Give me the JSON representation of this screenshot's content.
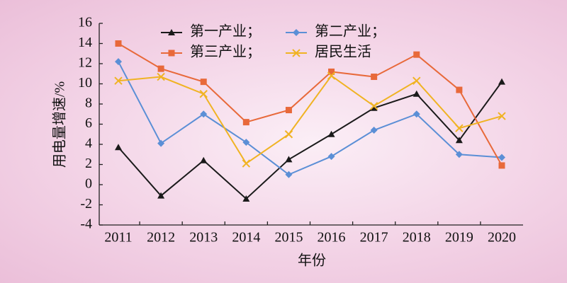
{
  "chart_data": {
    "type": "line",
    "x_label": "年份",
    "y_label": "用电量增速/%",
    "categories": [
      "2011",
      "2012",
      "2013",
      "2014",
      "2015",
      "2016",
      "2017",
      "2018",
      "2019",
      "2020"
    ],
    "series": [
      {
        "name": "第一产业；",
        "color": "#1a1a1a",
        "marker": "triangle",
        "values": [
          3.7,
          -1.1,
          2.4,
          -1.4,
          2.5,
          5.0,
          7.6,
          9.0,
          4.4,
          10.2
        ]
      },
      {
        "name": "第二产业；",
        "color": "#5b8fd6",
        "marker": "diamond",
        "values": [
          12.2,
          4.1,
          7.0,
          4.2,
          1.0,
          2.8,
          5.4,
          7.0,
          3.0,
          2.7
        ]
      },
      {
        "name": "第三产业；",
        "color": "#e8693a",
        "marker": "square",
        "values": [
          14.0,
          11.5,
          10.2,
          6.2,
          7.4,
          11.2,
          10.7,
          12.9,
          9.4,
          1.9
        ]
      },
      {
        "name": "居民生活",
        "color": "#f0b323",
        "marker": "x",
        "values": [
          10.3,
          10.7,
          9.0,
          2.1,
          5.0,
          10.8,
          7.8,
          10.3,
          5.6,
          6.8
        ]
      }
    ],
    "ylim": [
      -4,
      16
    ],
    "yticks": [
      -4,
      -2,
      0,
      2,
      4,
      6,
      8,
      10,
      12,
      14,
      16
    ],
    "grid": false
  }
}
